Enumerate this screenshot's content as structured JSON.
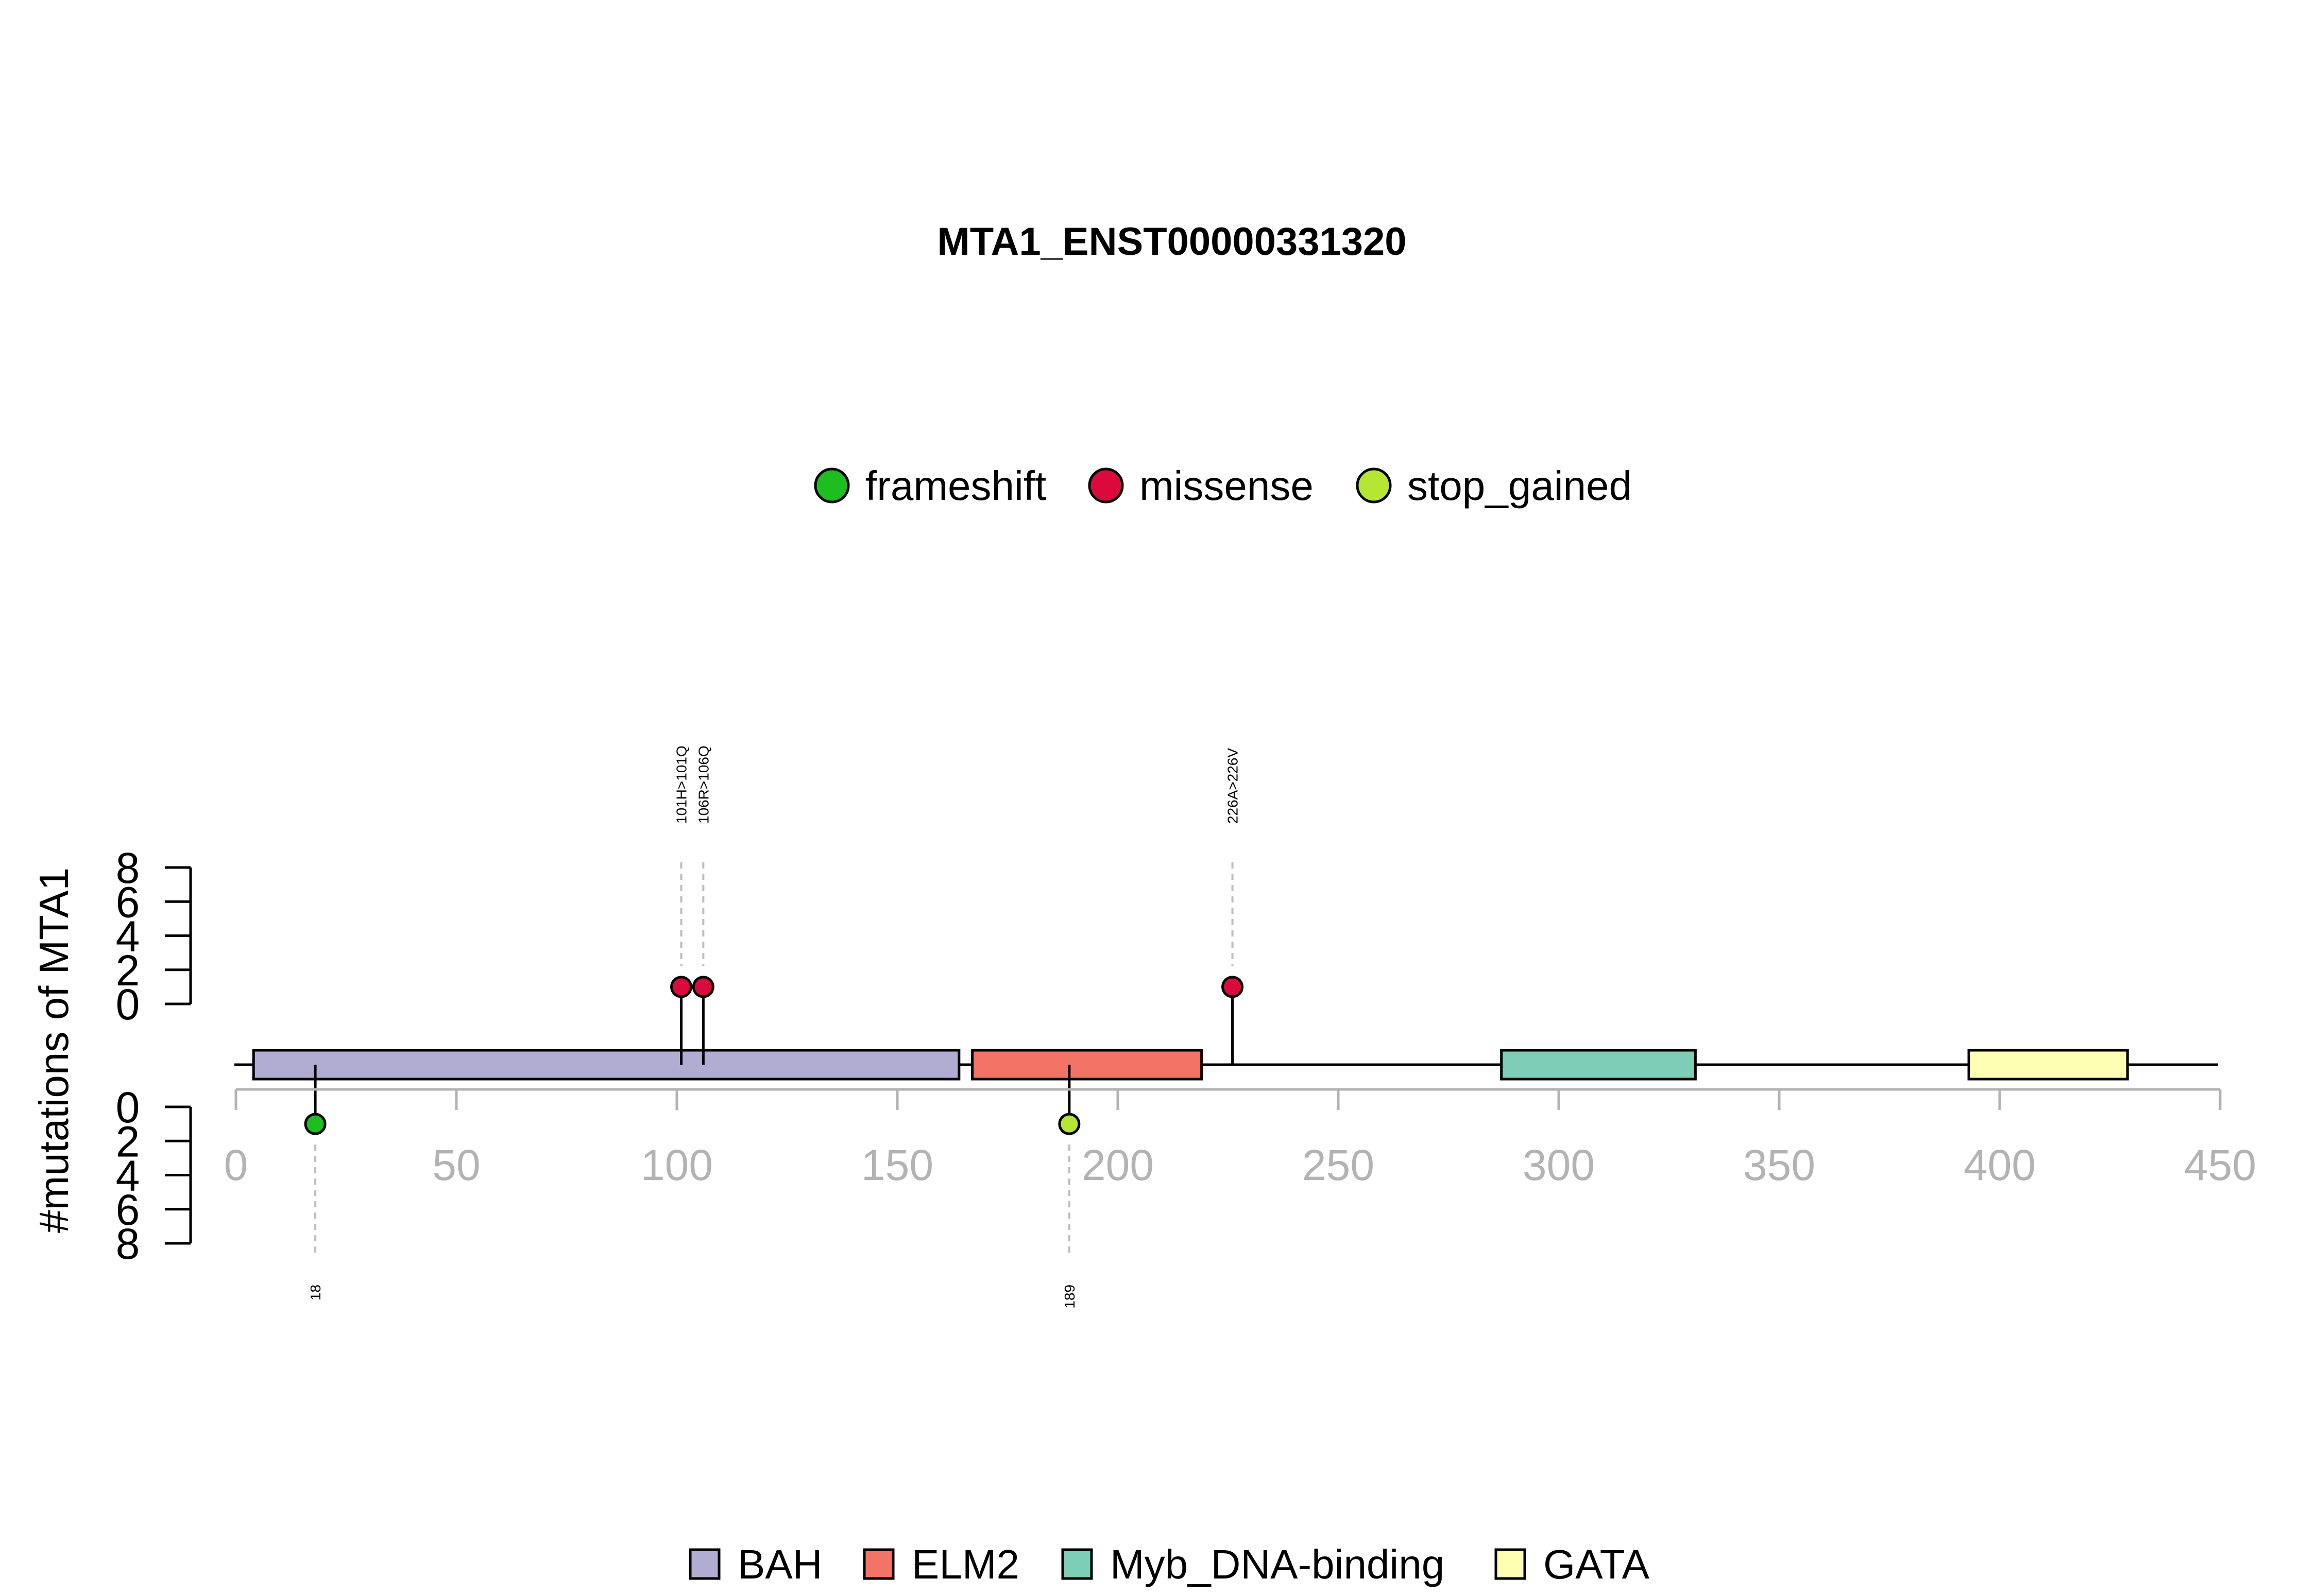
{
  "chart_data": {
    "type": "lollipop",
    "title": "MTA1_ENST00000331320",
    "ylabel": "#mutations of MTA1",
    "xlim": [
      0,
      450
    ],
    "x_ticks": [
      0,
      50,
      100,
      150,
      200,
      250,
      300,
      350,
      400,
      450
    ],
    "ylim_top": [
      0,
      8
    ],
    "ylim_bottom": [
      0,
      8
    ],
    "y_ticks": [
      0,
      2,
      4,
      6,
      8
    ],
    "mutation_legend": [
      {
        "name": "frameshift",
        "color": "#1cbe20"
      },
      {
        "name": "missense",
        "color": "#dc0a3c"
      },
      {
        "name": "stop_gained",
        "color": "#b4e632"
      }
    ],
    "domain_legend": [
      {
        "name": "BAH",
        "color": "#b0acd2"
      },
      {
        "name": "ELM2",
        "color": "#f37466"
      },
      {
        "name": "Myb_DNA-binding",
        "color": "#7dcdb7"
      },
      {
        "name": "GATA",
        "color": "#ffffb3"
      }
    ],
    "domains": [
      {
        "name": "BAH",
        "start": 4,
        "end": 164,
        "color": "#b0acd2"
      },
      {
        "name": "ELM2",
        "start": 167,
        "end": 219,
        "color": "#f37466"
      },
      {
        "name": "Myb_DNA-binding",
        "start": 287,
        "end": 331,
        "color": "#7dcdb7"
      },
      {
        "name": "GATA",
        "start": 393,
        "end": 429,
        "color": "#ffffb3"
      }
    ],
    "mutations_top": [
      {
        "position": 101,
        "count": 1,
        "type": "missense",
        "label": "101H>101Q"
      },
      {
        "position": 106,
        "count": 1,
        "type": "missense",
        "label": "106R>106Q"
      },
      {
        "position": 226,
        "count": 1,
        "type": "missense",
        "label": "226A>226V"
      }
    ],
    "mutations_bottom": [
      {
        "position": 18,
        "count": 1,
        "type": "frameshift",
        "label": "18"
      },
      {
        "position": 189,
        "count": 1,
        "type": "stop_gained",
        "label": "189"
      }
    ]
  }
}
